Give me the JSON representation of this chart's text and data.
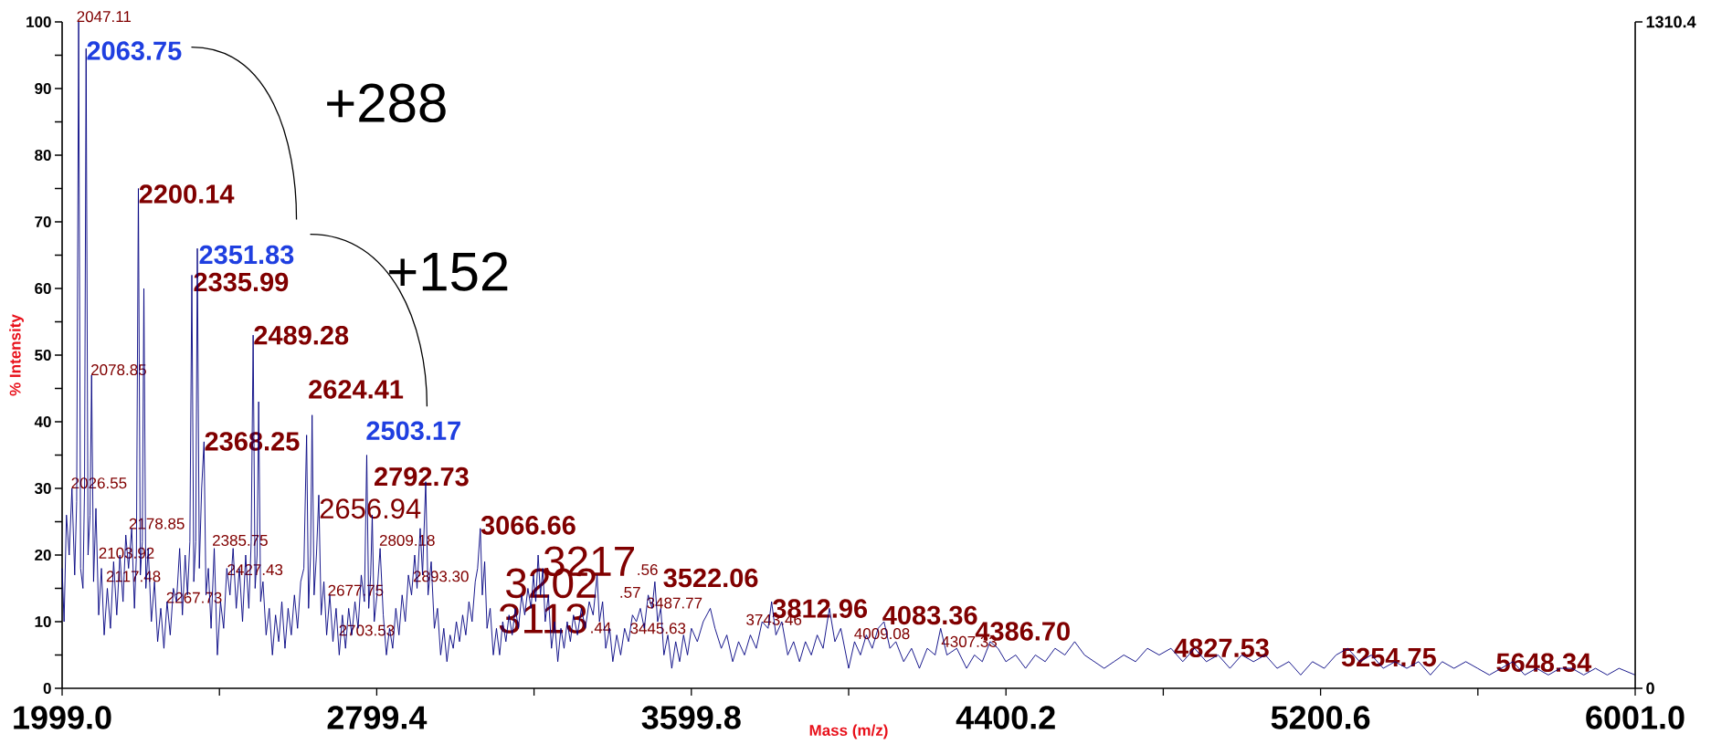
{
  "chart_data": {
    "type": "line",
    "xlabel": "Mass (m/z)",
    "ylabel": "% Intensity",
    "xlim": [
      1999.0,
      6001.0
    ],
    "xticks": [
      {
        "value": 1999.0,
        "label": "1999.0"
      },
      {
        "value": 2399.2,
        "label": null
      },
      {
        "value": 2799.4,
        "label": "2799.4"
      },
      {
        "value": 3199.6,
        "label": null
      },
      {
        "value": 3599.8,
        "label": "3599.8"
      },
      {
        "value": 4000.0,
        "label": null
      },
      {
        "value": 4400.2,
        "label": "4400.2"
      },
      {
        "value": 4800.4,
        "label": null
      },
      {
        "value": 5200.6,
        "label": "5200.6"
      },
      {
        "value": 5600.8,
        "label": null
      },
      {
        "value": 6001.0,
        "label": "6001.0"
      }
    ],
    "ylim": [
      0,
      100
    ],
    "yticks": [
      0,
      {
        "value": 5,
        "label": null
      },
      10,
      {
        "value": 15,
        "label": null
      },
      20,
      {
        "value": 25,
        "label": null
      },
      30,
      {
        "value": 35,
        "label": null
      },
      40,
      {
        "value": 45,
        "label": null
      },
      50,
      {
        "value": 55,
        "label": null
      },
      60,
      {
        "value": 65,
        "label": null
      },
      70,
      {
        "value": 75,
        "label": null
      },
      80,
      {
        "value": 85,
        "label": null
      },
      90,
      {
        "value": 95,
        "label": null
      },
      100
    ],
    "y2lim": [
      0,
      1310.4
    ],
    "y2ticks": [
      0,
      1310.4
    ],
    "series": [
      {
        "color": "#000080",
        "x": [
          1999,
          2004,
          2010,
          2017,
          2024,
          2031,
          2036,
          2041,
          2046,
          2052,
          2056,
          2060,
          2065,
          2070,
          2074,
          2079,
          2085,
          2092,
          2099,
          2106,
          2114,
          2122,
          2130,
          2138,
          2146,
          2154,
          2161,
          2168,
          2176,
          2183,
          2188,
          2193,
          2198,
          2203,
          2207,
          2212,
          2218,
          2226,
          2234,
          2242,
          2250,
          2258,
          2266,
          2274,
          2282,
          2290,
          2298,
          2305,
          2312,
          2318,
          2324,
          2329,
          2334,
          2339,
          2343,
          2348,
          2354,
          2360,
          2365,
          2371,
          2378,
          2386,
          2394,
          2402,
          2410,
          2418,
          2426,
          2434,
          2442,
          2450,
          2458,
          2466,
          2474,
          2480,
          2485,
          2490,
          2495,
          2499,
          2504,
          2510,
          2518,
          2526,
          2534,
          2542,
          2550,
          2558,
          2566,
          2574,
          2582,
          2590,
          2598,
          2606,
          2614,
          2621,
          2626,
          2631,
          2635,
          2640,
          2646,
          2652,
          2658,
          2665,
          2672,
          2680,
          2688,
          2696,
          2704,
          2712,
          2720,
          2728,
          2736,
          2744,
          2752,
          2760,
          2768,
          2774,
          2779,
          2784,
          2788,
          2793,
          2800,
          2808,
          2816,
          2824,
          2832,
          2840,
          2848,
          2856,
          2864,
          2872,
          2880,
          2888,
          2896,
          2902,
          2910,
          2916,
          2924,
          2930,
          2938,
          2946,
          2954,
          2962,
          2970,
          2978,
          2986,
          2994,
          3002,
          3010,
          3018,
          3026,
          3034,
          3042,
          3050,
          3056,
          3063,
          3068,
          3074,
          3080,
          3088,
          3096,
          3104,
          3112,
          3120,
          3128,
          3136,
          3144,
          3152,
          3160,
          3168,
          3176,
          3184,
          3192,
          3198,
          3204,
          3210,
          3216,
          3222,
          3228,
          3236,
          3244,
          3252,
          3260,
          3268,
          3276,
          3284,
          3292,
          3300,
          3310,
          3320,
          3330,
          3340,
          3350,
          3360,
          3366,
          3374,
          3382,
          3392,
          3400,
          3410,
          3420,
          3430,
          3440,
          3450,
          3460,
          3470,
          3480,
          3490,
          3500,
          3507,
          3514,
          3522,
          3530,
          3540,
          3550,
          3560,
          3570,
          3580,
          3590,
          3600,
          3615,
          3630,
          3648,
          3660,
          3676,
          3690,
          3705,
          3720,
          3735,
          3750,
          3765,
          3780,
          3795,
          3804,
          3815,
          3830,
          3845,
          3860,
          3875,
          3890,
          3905,
          3920,
          3935,
          3951,
          3965,
          3980,
          4000,
          4015,
          4030,
          4045,
          4060,
          4075,
          4090,
          4105,
          4120,
          4140,
          4160,
          4180,
          4200,
          4220,
          4234,
          4250,
          4275,
          4300,
          4320,
          4340,
          4360,
          4380,
          4400,
          4425,
          4450,
          4475,
          4500,
          4525,
          4550,
          4575,
          4600,
          4625,
          4650,
          4675,
          4700,
          4730,
          4760,
          4790,
          4820,
          4850,
          4880,
          4910,
          4940,
          4970,
          5000,
          5030,
          5060,
          5090,
          5120,
          5150,
          5180,
          5210,
          5240,
          5270,
          5300,
          5330,
          5360,
          5390,
          5420,
          5450,
          5480,
          5510,
          5540,
          5570,
          5600,
          5630,
          5660,
          5690,
          5720,
          5750,
          5780,
          5810,
          5840,
          5870,
          5900,
          5930,
          5960,
          6001
        ],
        "values": [
          18,
          10,
          26,
          20,
          30,
          17,
          28,
          100,
          18,
          15,
          30,
          96,
          20,
          26,
          47,
          16,
          27,
          11,
          18,
          8,
          15,
          9,
          19,
          11,
          20,
          13,
          23,
          18,
          24,
          12,
          20,
          75,
          17,
          22,
          60,
          15,
          21,
          10,
          16,
          7,
          12,
          6,
          13,
          8,
          15,
          13,
          21,
          11,
          20,
          14,
          22,
          62,
          16,
          22,
          66,
          18,
          30,
          37,
          14,
          18,
          9,
          21,
          5,
          13,
          9,
          18,
          14,
          21,
          12,
          18,
          10,
          20,
          12,
          22,
          53,
          15,
          20,
          43,
          13,
          16,
          8,
          12,
          5,
          11,
          7,
          13,
          6,
          12,
          8,
          14,
          9,
          16,
          18,
          38,
          12,
          20,
          41,
          14,
          20,
          29,
          11,
          16,
          8,
          14,
          7,
          12,
          5,
          11,
          6,
          12,
          8,
          13,
          9,
          17,
          13,
          35,
          12,
          17,
          26,
          10,
          14,
          21,
          11,
          5,
          9,
          6,
          12,
          8,
          14,
          10,
          17,
          14,
          20,
          15,
          24,
          17,
          31,
          14,
          19,
          9,
          12,
          5,
          9,
          4,
          8,
          6,
          10,
          7,
          11,
          8,
          13,
          10,
          16,
          18,
          24,
          14,
          19,
          9,
          12,
          5,
          9,
          5,
          10,
          7,
          11,
          8,
          12,
          9,
          14,
          11,
          15,
          12,
          17,
          13,
          20,
          14,
          18,
          10,
          14,
          6,
          10,
          4,
          9,
          6,
          10,
          7,
          11,
          8,
          12,
          9,
          13,
          11,
          17,
          10,
          13,
          6,
          9,
          4,
          8,
          5,
          9,
          7,
          11,
          10,
          12,
          9,
          14,
          12,
          16,
          10,
          12,
          5,
          8,
          3,
          7,
          4,
          8,
          5,
          9,
          7,
          10,
          12,
          9,
          6,
          8,
          4,
          7,
          5,
          8,
          6,
          10,
          9,
          13,
          8,
          10,
          5,
          7,
          4,
          7,
          5,
          8,
          6,
          12,
          7,
          9,
          3,
          7,
          5,
          8,
          6,
          9,
          10,
          6,
          7,
          4,
          6,
          3,
          6,
          5,
          9,
          5,
          6,
          3,
          5,
          4,
          7,
          6,
          4,
          5,
          3,
          5,
          4,
          6,
          5,
          7,
          5,
          4,
          3,
          4,
          5,
          4,
          6,
          5,
          6,
          4,
          6,
          4,
          5,
          3,
          5,
          4,
          5,
          3,
          4,
          2,
          4,
          3,
          5,
          6,
          4,
          5,
          3,
          4,
          3,
          4,
          2,
          4,
          3,
          4,
          3,
          2,
          3,
          4,
          2,
          3,
          2,
          3,
          3,
          2,
          3,
          2,
          3,
          2
        ]
      }
    ],
    "annotations": [
      {
        "text": "2063.75",
        "x": 2060,
        "y": 94.3
      },
      {
        "text": "2351.83",
        "x": 2346,
        "y": 63.7
      },
      "2503.17",
      {
        "text": "2200.14",
        "x": 2193,
        "y": 72.8
      },
      {
        "text": "2335.99",
        "x": 2332,
        "y": 59.6
      },
      {
        "text": "2489.28",
        "x": 2485,
        "y": 51.6
      },
      "2624.41",
      {
        "text": "2368.25",
        "x": 2360,
        "y": 35.7
      },
      "2792.73",
      {
        "text": "3066.66",
        "x": 3063,
        "y": 23.1
      },
      "3522.06",
      {
        "text": "3812.96",
        "x": 3805,
        "y": 10.6
      },
      "4083.36",
      "4386.70",
      {
        "text": "4827.53",
        "x": 4827,
        "y": 4.7
      },
      "5254.75",
      "5648.34",
      {
        "text": "2047.11",
        "x": 2035,
        "y": 100
      },
      {
        "text": "2078.85",
        "x": 2071,
        "y": 47
      },
      {
        "text": "2026.55",
        "x": 2021,
        "y": 30
      },
      {
        "text": "2178.85",
        "x": 2168,
        "y": 23.9
      },
      {
        "text": "2103.92",
        "x": 2091,
        "y": 19.5
      },
      {
        "text": "2117.48",
        "x": 2110,
        "y": 16
      },
      "2385.75",
      {
        "text": "2427.43",
        "x": 2418,
        "y": 17
      },
      "2267.73",
      "2809.18",
      {
        "text": "2893.30",
        "x": 2891,
        "y": 16
      },
      {
        "text": "2677.75",
        "x": 2674,
        "y": 13.9
      },
      {
        "text": "2703.53",
        "x": 2702,
        "y": 7.9
      },
      ".56",
      ".57",
      ".44",
      {
        "text": "3487.77",
        "x": 3485,
        "y": 12
      },
      {
        "text": "3445.63",
        "x": 3443,
        "y": 8.2
      },
      "3743.46",
      {
        "text": "4009.08",
        "x": 4013,
        "y": 7.4
      },
      {
        "text": "4307.33",
        "x": 4235,
        "y": 6.2
      },
      {
        "text": "2656.94",
        "x": 2652,
        "y": 25.5
      },
      {
        "text": "3217",
        "x": 3221,
        "y": 16.9
      },
      "3202",
      {
        "text": "3113",
        "x": 3107,
        "y": 8.3
      },
      "+288",
      "+152"
    ]
  }
}
